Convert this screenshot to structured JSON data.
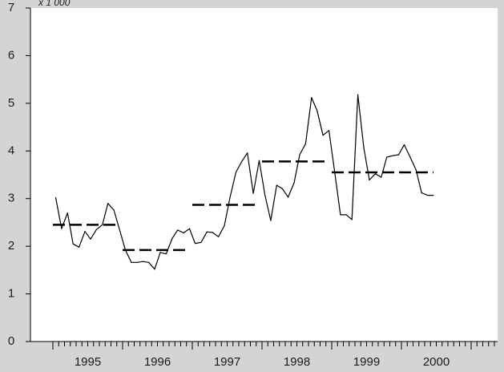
{
  "chart_data": {
    "type": "line",
    "title": "",
    "xlabel": "",
    "ylabel": "",
    "y_unit_label": "x 1 000",
    "ylim": [
      0,
      7
    ],
    "yticks": [
      0,
      1,
      2,
      3,
      4,
      5,
      6,
      7
    ],
    "xlim": [
      1994.5,
      2001.08
    ],
    "xticks": [
      "1995",
      "1996",
      "1997",
      "1998",
      "1999",
      "2000"
    ],
    "grid": false,
    "legend": "none",
    "colors": {
      "background": "#d4d4d4",
      "plot": "#ffffff",
      "line": "#000000"
    },
    "series": [
      {
        "style": "solid",
        "x": [
          1994.54,
          1994.625,
          1994.71,
          1994.79,
          1994.875,
          1994.96,
          1995.04,
          1995.125,
          1995.21,
          1995.29,
          1995.375,
          1995.46,
          1995.54,
          1995.625,
          1995.71,
          1995.79,
          1995.875,
          1995.96,
          1996.04,
          1996.125,
          1996.21,
          1996.29,
          1996.375,
          1996.46,
          1996.54,
          1996.625,
          1996.71,
          1996.79,
          1996.875,
          1996.96,
          1997.04,
          1997.125,
          1997.21,
          1997.29,
          1997.375,
          1997.46,
          1997.54,
          1997.625,
          1997.71,
          1997.79,
          1997.875,
          1997.96,
          1998.04,
          1998.125,
          1998.21,
          1998.29,
          1998.375,
          1998.46,
          1998.54,
          1998.625,
          1998.71,
          1998.79,
          1998.875,
          1998.96,
          1999.04,
          1999.125,
          1999.21,
          1999.29,
          1999.375,
          1999.46,
          1999.54,
          1999.625,
          1999.71,
          1999.79,
          1999.875,
          1999.96
        ],
        "y": [
          3.02,
          2.37,
          2.7,
          2.05,
          1.98,
          2.31,
          2.15,
          2.35,
          2.45,
          2.9,
          2.76,
          2.33,
          1.92,
          1.66,
          1.66,
          1.68,
          1.66,
          1.52,
          1.87,
          1.84,
          2.16,
          2.34,
          2.28,
          2.37,
          2.06,
          2.08,
          2.3,
          2.29,
          2.2,
          2.43,
          3.02,
          3.55,
          3.78,
          3.96,
          3.11,
          3.8,
          3.09,
          2.54,
          3.28,
          3.21,
          3.03,
          3.33,
          3.92,
          4.15,
          5.12,
          4.85,
          4.33,
          4.43,
          3.58,
          2.66,
          2.66,
          2.56,
          5.18,
          4.07,
          3.39,
          3.52,
          3.45,
          3.87,
          3.9,
          3.92,
          4.13,
          3.87,
          3.6,
          3.12,
          3.07,
          3.07
        ]
      },
      {
        "style": "dashed",
        "segments": [
          {
            "x": [
              1994.5,
              1995.42
            ],
            "y": 2.45
          },
          {
            "x": [
              1995.5,
              1996.42
            ],
            "y": 1.92
          },
          {
            "x": [
              1996.5,
              1997.42
            ],
            "y": 2.87
          },
          {
            "x": [
              1997.5,
              1998.42
            ],
            "y": 3.78
          },
          {
            "x": [
              1998.5,
              1999.96
            ],
            "y": 3.55
          }
        ]
      }
    ]
  }
}
